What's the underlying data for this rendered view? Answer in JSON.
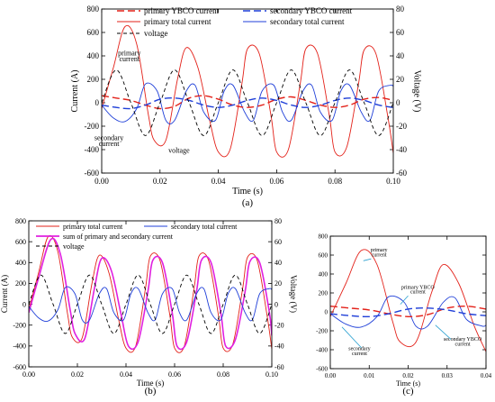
{
  "chart_data": [
    {
      "type": "line",
      "panel_label": "(a)",
      "xlabel": "Time (s)",
      "ylabel": "Current (A)",
      "y2label": "Voltage (V)",
      "xlim": [
        0,
        0.1
      ],
      "ylim": [
        -600,
        800
      ],
      "y2lim": [
        -60,
        80
      ],
      "xticks": [
        "0.00",
        "0.02",
        "0.04",
        "0.06",
        "0.08",
        "0.10"
      ],
      "yticks": [
        "-600",
        "-400",
        "-200",
        "0",
        "200",
        "400",
        "600",
        "800"
      ],
      "y2ticks": [
        "-60",
        "-40",
        "-20",
        "0",
        "20",
        "40",
        "60",
        "80"
      ],
      "legend": [
        {
          "label": "primary  YBCO current",
          "color": "#e32119",
          "dash": "long"
        },
        {
          "label": "secondary  YBCO current",
          "color": "#1f3fd8",
          "dash": "long"
        },
        {
          "label": "primary  total current",
          "color": "#e32119",
          "dash": "solid"
        },
        {
          "label": "secondary  total current",
          "color": "#1f3fd8",
          "dash": "solid"
        },
        {
          "label": "voltage",
          "color": "#000000",
          "dash": "short"
        }
      ],
      "annotations": [
        {
          "text": "primary",
          "x": 0.0095,
          "y": 405
        },
        {
          "text": "current",
          "x": 0.0095,
          "y": 355
        },
        {
          "text": "secondary",
          "x": 0.0025,
          "y": -318
        },
        {
          "text": "current",
          "x": 0.0025,
          "y": -370
        },
        {
          "text": "voltage",
          "x": 0.0265,
          "y": -428
        }
      ],
      "series": [
        {
          "name": "primary  total current",
          "axis": "left",
          "color": "#e32119",
          "dash": "solid",
          "x": [
            0,
            0.004,
            0.008,
            0.012,
            0.016,
            0.018,
            0.022,
            0.026,
            0.029,
            0.033,
            0.037,
            0.04,
            0.044,
            0.048,
            0.05,
            0.054,
            0.058,
            0.06,
            0.064,
            0.068,
            0.07,
            0.074,
            0.078,
            0.08,
            0.084,
            0.088,
            0.09,
            0.094,
            0.098,
            0.1
          ],
          "y": [
            -50,
            300,
            650,
            500,
            -100,
            -320,
            -320,
            200,
            470,
            300,
            -150,
            -420,
            -400,
            150,
            460,
            420,
            -100,
            -420,
            -400,
            150,
            460,
            420,
            -100,
            -420,
            -380,
            150,
            450,
            420,
            -100,
            -430
          ]
        },
        {
          "name": "secondary  total current",
          "axis": "left",
          "color": "#1f3fd8",
          "dash": "solid",
          "x": [
            0,
            0.004,
            0.008,
            0.012,
            0.015,
            0.019,
            0.022,
            0.025,
            0.029,
            0.032,
            0.035,
            0.039,
            0.042,
            0.045,
            0.049,
            0.052,
            0.055,
            0.059,
            0.062,
            0.065,
            0.069,
            0.072,
            0.075,
            0.079,
            0.082,
            0.085,
            0.089,
            0.092,
            0.095,
            0.099,
            0.1
          ],
          "y": [
            -20,
            -130,
            -160,
            -50,
            160,
            100,
            -150,
            -150,
            100,
            150,
            -80,
            -150,
            100,
            150,
            -80,
            -150,
            100,
            150,
            -80,
            -150,
            100,
            150,
            -80,
            -150,
            100,
            150,
            -80,
            -150,
            100,
            150,
            140
          ]
        },
        {
          "name": "primary  YBCO current",
          "axis": "left",
          "color": "#e32119",
          "dash": "long",
          "x": [
            0,
            0.005,
            0.01,
            0.015,
            0.02,
            0.025,
            0.03,
            0.035,
            0.04,
            0.045,
            0.05,
            0.055,
            0.06,
            0.065,
            0.07,
            0.075,
            0.08,
            0.085,
            0.09,
            0.095,
            0.1
          ],
          "y": [
            60,
            40,
            20,
            -20,
            -50,
            -30,
            40,
            60,
            30,
            -20,
            -40,
            -20,
            30,
            50,
            20,
            -20,
            -40,
            -20,
            30,
            45,
            20
          ]
        },
        {
          "name": "secondary  YBCO current",
          "axis": "left",
          "color": "#1f3fd8",
          "dash": "long",
          "x": [
            0,
            0.005,
            0.01,
            0.015,
            0.02,
            0.025,
            0.03,
            0.035,
            0.04,
            0.045,
            0.05,
            0.055,
            0.06,
            0.065,
            0.07,
            0.075,
            0.08,
            0.085,
            0.09,
            0.095,
            0.1
          ],
          "y": [
            -20,
            -40,
            -50,
            -20,
            30,
            40,
            20,
            -20,
            -40,
            -20,
            20,
            40,
            20,
            -20,
            -40,
            -20,
            20,
            40,
            20,
            -20,
            -40
          ]
        },
        {
          "name": "voltage",
          "axis": "right",
          "color": "#000000",
          "dash": "short",
          "x": [
            0,
            0.005,
            0.01,
            0.015,
            0.02,
            0.025,
            0.03,
            0.035,
            0.04,
            0.045,
            0.05,
            0.055,
            0.06,
            0.065,
            0.07,
            0.075,
            0.08,
            0.085,
            0.09,
            0.095,
            0.1
          ],
          "y": [
            0,
            28,
            0,
            -28,
            0,
            28,
            0,
            -28,
            0,
            28,
            0,
            -28,
            0,
            28,
            0,
            -28,
            0,
            28,
            0,
            -28,
            0
          ]
        }
      ]
    },
    {
      "type": "line",
      "panel_label": "(b)",
      "xlabel": "Time (s)",
      "ylabel": "Current (A)",
      "y2label": "Voltage (V)",
      "xlim": [
        0,
        0.1
      ],
      "ylim": [
        -600,
        800
      ],
      "y2lim": [
        -60,
        80
      ],
      "xticks": [
        "0.00",
        "0.02",
        "0.04",
        "0.06",
        "0.08",
        "0.10"
      ],
      "yticks": [
        "-600",
        "-400",
        "-200",
        "0",
        "200",
        "400",
        "600",
        "800"
      ],
      "y2ticks": [
        "-60",
        "-40",
        "-20",
        "0",
        "20",
        "40",
        "60",
        "80"
      ],
      "legend": [
        {
          "label": "primary  total current",
          "color": "#e32119",
          "dash": "solid"
        },
        {
          "label": "secondary  total current",
          "color": "#1f3fd8",
          "dash": "solid"
        },
        {
          "label": "sum of primary and secondary current",
          "color": "#e020e0",
          "dash": "solid"
        },
        {
          "label": "voltage",
          "color": "#000000",
          "dash": "short"
        }
      ],
      "series": [
        {
          "name": "primary  total current",
          "axis": "left",
          "color": "#e32119",
          "dash": "solid",
          "x": [
            0,
            0.004,
            0.008,
            0.012,
            0.016,
            0.018,
            0.022,
            0.026,
            0.029,
            0.033,
            0.037,
            0.04,
            0.044,
            0.048,
            0.05,
            0.054,
            0.058,
            0.06,
            0.064,
            0.068,
            0.07,
            0.074,
            0.078,
            0.08,
            0.084,
            0.088,
            0.09,
            0.094,
            0.098,
            0.1
          ],
          "y": [
            -50,
            300,
            650,
            500,
            -100,
            -320,
            -320,
            200,
            470,
            300,
            -150,
            -420,
            -400,
            150,
            460,
            420,
            -100,
            -420,
            -400,
            150,
            460,
            420,
            -100,
            -420,
            -380,
            150,
            450,
            420,
            -100,
            -430
          ]
        },
        {
          "name": "sum of primary and secondary current",
          "axis": "left",
          "color": "#e020e0",
          "dash": "solid",
          "x": [
            0,
            0.004,
            0.009,
            0.013,
            0.017,
            0.019,
            0.023,
            0.027,
            0.03,
            0.034,
            0.038,
            0.041,
            0.045,
            0.049,
            0.051,
            0.055,
            0.059,
            0.061,
            0.065,
            0.069,
            0.071,
            0.075,
            0.079,
            0.081,
            0.085,
            0.089,
            0.091,
            0.095,
            0.099,
            0.1
          ],
          "y": [
            -80,
            250,
            620,
            480,
            -50,
            -280,
            -330,
            150,
            440,
            320,
            -100,
            -400,
            -360,
            120,
            420,
            400,
            -80,
            -400,
            -360,
            120,
            420,
            400,
            -80,
            -400,
            -340,
            120,
            410,
            400,
            -80,
            -300
          ]
        },
        {
          "name": "secondary  total current",
          "axis": "left",
          "color": "#1f3fd8",
          "dash": "solid",
          "x": [
            0,
            0.004,
            0.008,
            0.012,
            0.015,
            0.019,
            0.022,
            0.025,
            0.029,
            0.032,
            0.035,
            0.039,
            0.042,
            0.045,
            0.049,
            0.052,
            0.055,
            0.059,
            0.062,
            0.065,
            0.069,
            0.072,
            0.075,
            0.079,
            0.082,
            0.085,
            0.089,
            0.092,
            0.095,
            0.099,
            0.1
          ],
          "y": [
            -20,
            -130,
            -160,
            -50,
            160,
            100,
            -150,
            -150,
            100,
            150,
            -80,
            -150,
            100,
            150,
            -80,
            -150,
            100,
            150,
            -80,
            -150,
            100,
            150,
            -80,
            -150,
            100,
            150,
            -80,
            -150,
            100,
            150,
            140
          ]
        },
        {
          "name": "voltage",
          "axis": "right",
          "color": "#000000",
          "dash": "short",
          "x": [
            0,
            0.005,
            0.01,
            0.015,
            0.02,
            0.025,
            0.03,
            0.035,
            0.04,
            0.045,
            0.05,
            0.055,
            0.06,
            0.065,
            0.07,
            0.075,
            0.08,
            0.085,
            0.09,
            0.095,
            0.1
          ],
          "y": [
            0,
            28,
            0,
            -28,
            0,
            28,
            0,
            -28,
            0,
            28,
            0,
            -28,
            0,
            28,
            0,
            -28,
            0,
            28,
            0,
            -28,
            0
          ]
        }
      ]
    },
    {
      "type": "line",
      "panel_label": "(c)",
      "xlabel": "Time (s)",
      "ylabel": "",
      "xlim": [
        0,
        0.04
      ],
      "ylim": [
        -600,
        800
      ],
      "xticks": [
        "0.00",
        "0.01",
        "0.02",
        "0.03",
        "0.04"
      ],
      "yticks": [
        "-600",
        "-400",
        "-200",
        "0",
        "200",
        "400",
        "600",
        "800"
      ],
      "annotations": [
        {
          "text": "primary",
          "x": 0.0125,
          "y": 640
        },
        {
          "text": "current",
          "x": 0.0125,
          "y": 585
        },
        {
          "text": "primary YBCO",
          "x": 0.0225,
          "y": 245
        },
        {
          "text": "current",
          "x": 0.0225,
          "y": 195
        },
        {
          "text": "secondary",
          "x": 0.0075,
          "y": -405
        },
        {
          "text": "current",
          "x": 0.0075,
          "y": -455
        },
        {
          "text": "secondary YBCO",
          "x": 0.034,
          "y": -305
        },
        {
          "text": "current",
          "x": 0.034,
          "y": -355
        }
      ],
      "series": [
        {
          "name": "primary total current",
          "axis": "left",
          "color": "#e32119",
          "dash": "solid",
          "x": [
            0,
            0.004,
            0.008,
            0.012,
            0.016,
            0.018,
            0.022,
            0.026,
            0.029,
            0.033,
            0.037,
            0.04
          ],
          "y": [
            -50,
            300,
            650,
            500,
            -100,
            -320,
            -320,
            200,
            500,
            300,
            -150,
            -420
          ]
        },
        {
          "name": "secondary total current",
          "axis": "left",
          "color": "#1f3fd8",
          "dash": "solid",
          "x": [
            0,
            0.004,
            0.008,
            0.012,
            0.015,
            0.019,
            0.022,
            0.025,
            0.029,
            0.032,
            0.035,
            0.039,
            0.04
          ],
          "y": [
            -20,
            -130,
            -160,
            -50,
            160,
            100,
            -150,
            -150,
            100,
            150,
            -80,
            -150,
            -140
          ]
        },
        {
          "name": "primary YBCO current",
          "axis": "left",
          "color": "#e32119",
          "dash": "long",
          "x": [
            0,
            0.005,
            0.01,
            0.015,
            0.02,
            0.025,
            0.03,
            0.035,
            0.04
          ],
          "y": [
            60,
            40,
            20,
            -20,
            -50,
            -30,
            40,
            60,
            30
          ]
        },
        {
          "name": "secondary YBCO current",
          "axis": "left",
          "color": "#1f3fd8",
          "dash": "long",
          "x": [
            0,
            0.005,
            0.01,
            0.015,
            0.02,
            0.025,
            0.03,
            0.035,
            0.04
          ],
          "y": [
            -20,
            -40,
            -50,
            -20,
            30,
            40,
            20,
            -20,
            -40
          ]
        }
      ]
    }
  ]
}
